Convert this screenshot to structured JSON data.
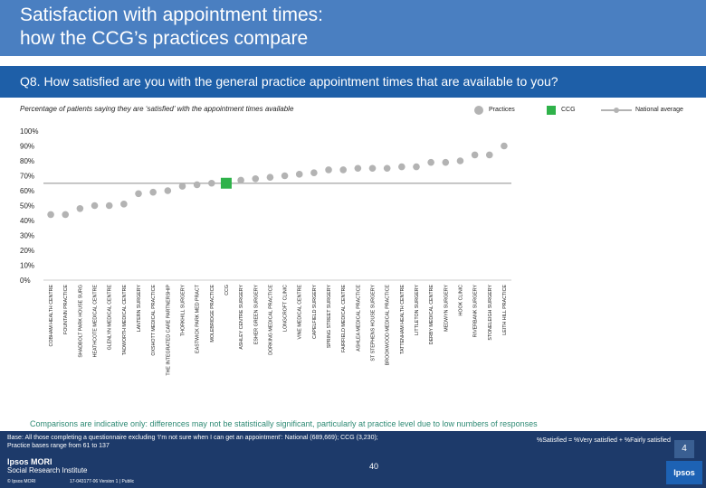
{
  "header": {
    "title": "Satisfaction with appointment times:\nhow the CCG’s practices compare"
  },
  "question": "Q8. How satisfied are you with the general practice appointment times that are available to you?",
  "colors": {
    "header": "#4a7fc1",
    "question_bar": "#1e5fa8",
    "practice": "#b3b3b3",
    "ccg": "#2fb24a",
    "national": "#b3b3b3",
    "note": "#2e8a74",
    "footer": "#1d3a6a"
  },
  "chart_data": {
    "type": "scatter",
    "title": "Percentage of patients saying they are ‘satisfied’ with the appointment times available",
    "ylim": [
      0,
      100
    ],
    "yticks": [
      "100%",
      "90%",
      "80%",
      "70%",
      "60%",
      "50%",
      "40%",
      "30%",
      "20%",
      "10%",
      "0%"
    ],
    "national_average": 65,
    "legend": {
      "practices": "Practices",
      "ccg": "CCG",
      "national": "National average"
    },
    "categories": [
      "COBHAM HEALTH CENTRE",
      "FOUNTAIN PRACTICE",
      "SHADBOLT PARK HOUSE SURG",
      "HEATHCOTE MEDICAL CENTRE",
      "GLENLYN MEDICAL CENTRE",
      "TADWORTH MEDICAL CENTRE",
      "LANTERN SURGERY",
      "OXSHOTT MEDICAL PRACTICE",
      "THE INTEGRATED CARE PARTNERSHIP",
      "THORKHILL SURGERY",
      "EASTWICK PARK MED PRACT",
      "MOLEBRIDGE PRACTICE",
      "CCG",
      "ASHLEY CENTRE SURGERY",
      "ESHER GREEN SURGERY",
      "DORKING MEDICAL PRACTICE",
      "LONGCROFT CLINIC",
      "VINE MEDICAL CENTRE",
      "CAPELFIELD SURGERY",
      "SPRING STREET SURGERY",
      "FAIRFIELD MEDICAL CENTRE",
      "ASHLEA MEDICAL PRACTICE",
      "ST STEPHENS HOUSE SURGERY",
      "BROOKWOOD MEDICAL PRACTICE",
      "TATTENHAM HEALTH CENTRE",
      "LITTLETON SURGERY",
      "DERBY MEDICAL CENTRE",
      "MEDWYN SURGERY",
      "HOOK CLINIC",
      "RIVERBANK SURGERY",
      "STONELEIGH SURGERY",
      "LEITH HILL PRACTICE"
    ],
    "values": [
      44,
      44,
      48,
      50,
      50,
      51,
      58,
      59,
      60,
      63,
      64,
      65,
      65,
      67,
      68,
      69,
      70,
      71,
      72,
      74,
      74,
      75,
      75,
      75,
      76,
      76,
      79,
      79,
      80,
      84,
      84,
      90
    ],
    "ccg_index": 12
  },
  "note": "Comparisons are indicative only: differences may not be statistically significant, particularly at practice level due to low numbers of responses",
  "footer": {
    "base": "Base: All those completing a questionnaire excluding ‘I’m not sure when I can get an appointment’: National (689,669); CCG (3,230);",
    "range": "Practice bases range from 61 to 137",
    "scale_note": "%Satisfied = %Very satisfied + %Fairly satisfied",
    "logo_line1": "Ipsos MORI",
    "logo_line2": "Social Research Institute",
    "copyright": "© Ipsos MORI",
    "jobref": "17-043177-06 Version 1 | Public",
    "page": "40",
    "badge": "4",
    "ipsos": "Ipsos"
  }
}
